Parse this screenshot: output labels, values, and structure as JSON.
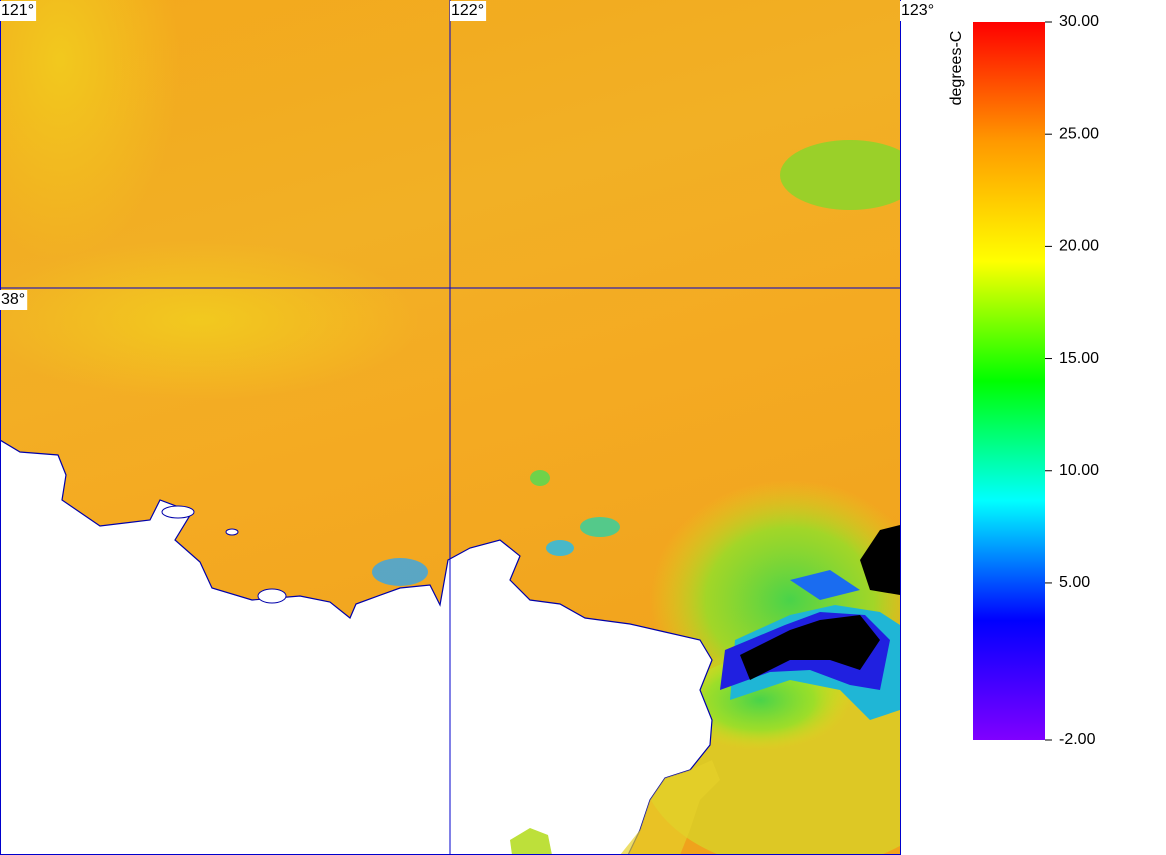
{
  "map": {
    "lon_range": [
      121,
      123
    ],
    "lat_range": [
      36.74,
      38.64
    ],
    "lon_ticks": [
      {
        "value": 121,
        "label": "121°"
      },
      {
        "value": 122,
        "label": "122°"
      },
      {
        "value": 123,
        "label": "123°"
      }
    ],
    "lat_ticks": [
      {
        "value": 38,
        "label": "38°"
      }
    ],
    "grid_color": "#0000cc"
  },
  "colorbar": {
    "title": "degrees-C",
    "range": [
      -2,
      30
    ],
    "ticks": [
      {
        "value": 30,
        "label": "30.00"
      },
      {
        "value": 25,
        "label": "25.00"
      },
      {
        "value": 20,
        "label": "20.00"
      },
      {
        "value": 15,
        "label": "15.00"
      },
      {
        "value": 10,
        "label": "10.00"
      },
      {
        "value": 5,
        "label": "5.00"
      },
      {
        "value": -2,
        "label": "-2.00"
      }
    ],
    "colormap": [
      "#8000ff",
      "#0000ff",
      "#00ffff",
      "#00ff00",
      "#ffff00",
      "#ff9900",
      "#ff0000"
    ]
  }
}
